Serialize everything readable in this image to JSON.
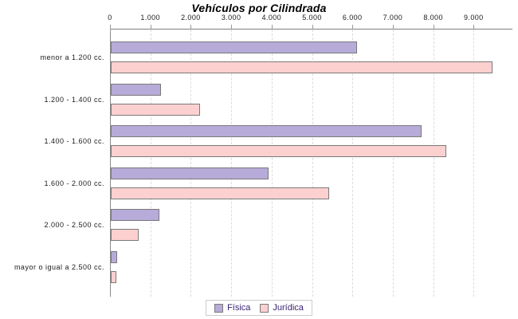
{
  "chart_data": {
    "type": "bar",
    "orientation": "horizontal",
    "title": "Vehículos por Cilindrada",
    "categories": [
      "menor a 1.200 cc.",
      "1.200 - 1.400 cc.",
      "1.400 - 1.600 cc.",
      "1.600 - 2.000 cc.",
      "2.000 - 2.500 cc.",
      "mayor o igual a 2.500 cc."
    ],
    "series": [
      {
        "name": "Física",
        "color": "#b6abd9",
        "values": [
          6100,
          1250,
          7700,
          3900,
          1200,
          150
        ]
      },
      {
        "name": "Jurídica",
        "color": "#fdd0d0",
        "values": [
          9450,
          2200,
          8300,
          5400,
          700,
          130
        ]
      }
    ],
    "xlim": [
      0,
      10000
    ],
    "x_ticks": [
      0,
      1000,
      2000,
      3000,
      4000,
      5000,
      6000,
      7000,
      8000,
      9000
    ],
    "x_tick_labels": [
      "0",
      "1.000",
      "2.000",
      "3.000",
      "4.000",
      "5.000",
      "6.000",
      "7.000",
      "8.000",
      "9.000"
    ],
    "grid": "vertical-dashed",
    "axis_position": "top",
    "legend_position": "bottom"
  },
  "colors": {
    "background": "#ffffff",
    "bar_border": "#7a7a7a",
    "axis_line": "#808080",
    "gridline": "#dcdcdc",
    "label_text": "#1a1a1a",
    "title_text": "#000000",
    "legend_text": "#3b2272",
    "legend_border": "#cccccc"
  }
}
